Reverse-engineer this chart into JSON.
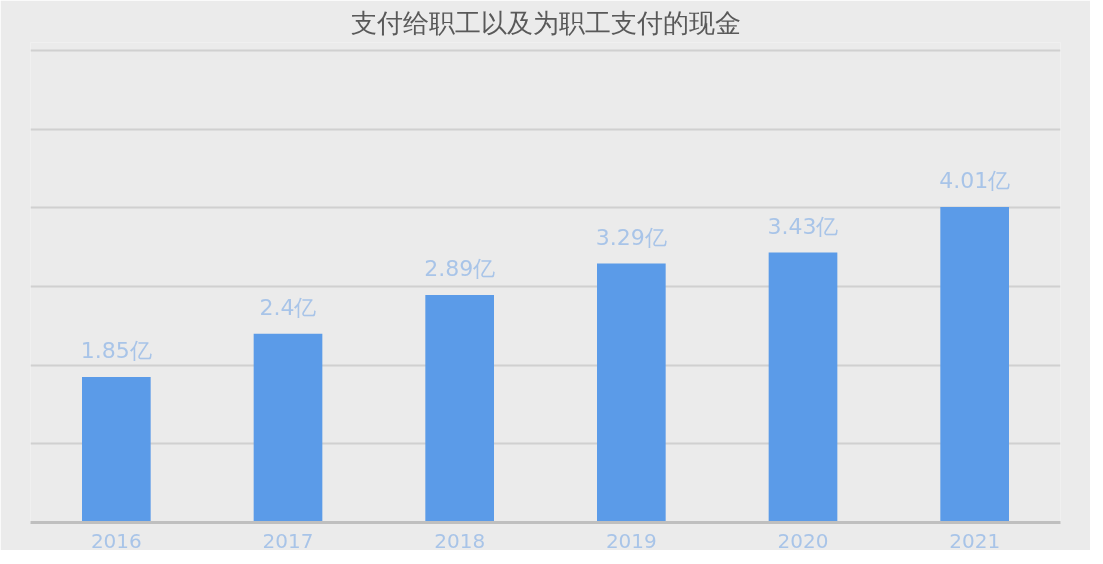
{
  "chart_data": {
    "type": "bar",
    "title": "支付给职工以及为职工支付的现金",
    "categories": [
      "2016",
      "2017",
      "2018",
      "2019",
      "2020",
      "2021"
    ],
    "values": [
      1.85,
      2.4,
      2.89,
      3.29,
      3.43,
      4.01
    ],
    "value_labels": [
      "1.85亿",
      "2.4亿",
      "2.89亿",
      "3.29亿",
      "3.43亿",
      "4.01亿"
    ],
    "color": "#5b9be8",
    "ylim": [
      0,
      6.1
    ],
    "yticks": [
      {
        "value": 0,
        "label": null
      },
      {
        "value": 1,
        "label": null
      },
      {
        "value": 2,
        "label": null
      },
      {
        "value": 3,
        "label": null
      },
      {
        "value": 4,
        "label": null
      },
      {
        "value": 5,
        "label": null
      },
      {
        "value": 6,
        "label": null
      }
    ],
    "grid": "y",
    "tick_labels": "x"
  }
}
